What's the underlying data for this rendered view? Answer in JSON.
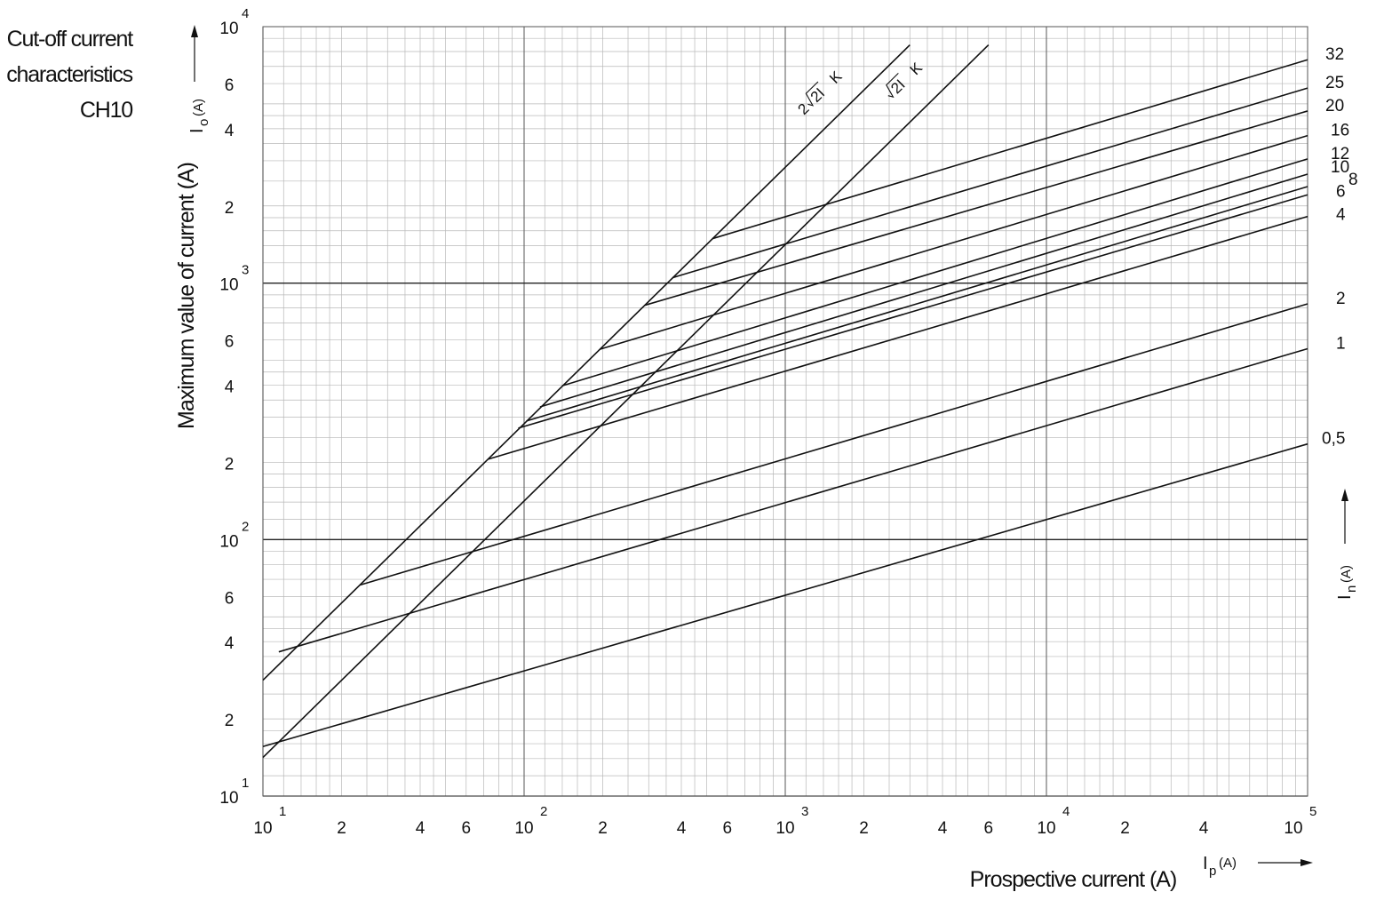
{
  "title_lines": [
    "Cut-off current",
    "characteristics",
    "CH10"
  ],
  "chart_data": {
    "type": "line",
    "title": "Cut-off current characteristics CH10",
    "xlabel": "Prospective current (A)",
    "ylabel": "Maximum value of current (A)",
    "x_axis_symbol": "Ip",
    "x_axis_symbol_main": "I",
    "x_axis_symbol_sub": "p",
    "x_axis_unit": "(A)",
    "y_axis_symbol": "Io",
    "y_axis_symbol_main": "I",
    "y_axis_symbol_sub": "o",
    "y_axis_unit": "(A)",
    "series_axis_symbol": "In",
    "series_axis_symbol_main": "I",
    "series_axis_symbol_sub": "n",
    "series_axis_unit": "(A)",
    "x_scale": "log",
    "y_scale": "log",
    "xlim": [
      10,
      100000
    ],
    "ylim": [
      10,
      10000
    ],
    "grid": true,
    "x_ticks": [
      {
        "value": 10,
        "base": "10",
        "exp": "1"
      },
      {
        "value": 20,
        "base": "2"
      },
      {
        "value": 40,
        "base": "4"
      },
      {
        "value": 60,
        "base": "6"
      },
      {
        "value": 100,
        "base": "10",
        "exp": "2"
      },
      {
        "value": 200,
        "base": "2"
      },
      {
        "value": 400,
        "base": "4"
      },
      {
        "value": 600,
        "base": "6"
      },
      {
        "value": 1000,
        "base": "10",
        "exp": "3"
      },
      {
        "value": 2000,
        "base": "2"
      },
      {
        "value": 4000,
        "base": "4"
      },
      {
        "value": 6000,
        "base": "6"
      },
      {
        "value": 10000,
        "base": "10",
        "exp": "4"
      },
      {
        "value": 20000,
        "base": "2"
      },
      {
        "value": 40000,
        "base": "4"
      },
      {
        "value": 100000,
        "base": "10",
        "exp": "5"
      }
    ],
    "y_ticks": [
      {
        "value": 10,
        "base": "10",
        "exp": "1"
      },
      {
        "value": 20,
        "base": "2"
      },
      {
        "value": 40,
        "base": "4"
      },
      {
        "value": 60,
        "base": "6"
      },
      {
        "value": 100,
        "base": "10",
        "exp": "2"
      },
      {
        "value": 200,
        "base": "2"
      },
      {
        "value": 400,
        "base": "4"
      },
      {
        "value": 600,
        "base": "6"
      },
      {
        "value": 1000,
        "base": "10",
        "exp": "3"
      },
      {
        "value": 2000,
        "base": "2"
      },
      {
        "value": 4000,
        "base": "4"
      },
      {
        "value": 6000,
        "base": "6"
      },
      {
        "value": 10000,
        "base": "10",
        "exp": "4"
      }
    ],
    "reference_lines": [
      {
        "name": "2√2I K",
        "prefix": "2",
        "radicand": "2I",
        "suffix": "K",
        "points": [
          [
            10,
            28.3
          ],
          [
            3000,
            8485
          ]
        ]
      },
      {
        "name": "√2I K",
        "prefix": "",
        "radicand": "2I",
        "suffix": "K",
        "points": [
          [
            10,
            14.14
          ],
          [
            6000,
            8485
          ]
        ]
      }
    ],
    "series": [
      {
        "name": "32",
        "points": [
          [
            525,
            1490
          ],
          [
            100000,
            7430
          ]
        ]
      },
      {
        "name": "25",
        "points": [
          [
            370,
            1050
          ],
          [
            100000,
            5760
          ]
        ]
      },
      {
        "name": "20",
        "points": [
          [
            290,
            820
          ],
          [
            100000,
            4690
          ]
        ]
      },
      {
        "name": "16",
        "points": [
          [
            195,
            552
          ],
          [
            100000,
            3760
          ]
        ]
      },
      {
        "name": "12",
        "points": [
          [
            140,
            398
          ],
          [
            100000,
            3050
          ]
        ]
      },
      {
        "name": "10",
        "points": [
          [
            115,
            329
          ],
          [
            100000,
            2660
          ]
        ]
      },
      {
        "name": "8",
        "points": [
          [
            102,
            290
          ],
          [
            100000,
            2380
          ]
        ]
      },
      {
        "name": "6",
        "points": [
          [
            95,
            272
          ],
          [
            100000,
            2210
          ]
        ]
      },
      {
        "name": "4",
        "points": [
          [
            73,
            206
          ],
          [
            100000,
            1820
          ]
        ]
      },
      {
        "name": "2",
        "points": [
          [
            23.5,
            66.5
          ],
          [
            100000,
            830
          ]
        ]
      },
      {
        "name": "1",
        "points": [
          [
            11.5,
            36.5
          ],
          [
            100000,
            555
          ]
        ]
      },
      {
        "name": "0,5",
        "points": [
          [
            10,
            15.6
          ],
          [
            100000,
            236
          ]
        ]
      }
    ]
  }
}
